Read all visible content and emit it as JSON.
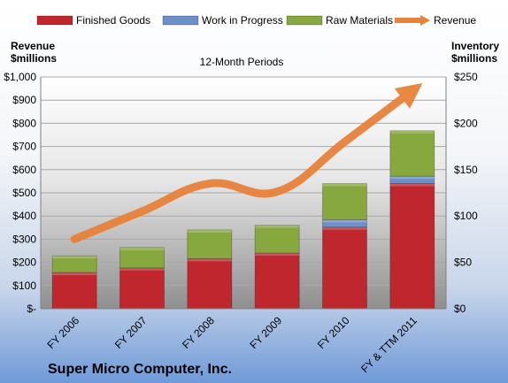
{
  "chart_data": {
    "type": "bar",
    "subtitle": "12-Month Periods",
    "company": "Super Micro Computer, Inc.",
    "categories": [
      "FY 2006",
      "FY 2007",
      "FY 2008",
      "FY 2009",
      "FY 2010",
      "FY & TTM 2011"
    ],
    "left_axis": {
      "title_line1": "Revenue",
      "title_line2": "$millions",
      "ylim": [
        0,
        1000
      ],
      "ticks": [
        "$-",
        "$100",
        "$200",
        "$300",
        "$400",
        "$500",
        "$600",
        "$700",
        "$800",
        "$900",
        "$1,000"
      ]
    },
    "right_axis": {
      "title_line1": "Inventory",
      "title_line2": "$millions",
      "ylim": [
        0,
        250
      ],
      "ticks": [
        "$0",
        "$50",
        "$100",
        "$150",
        "$200",
        "$250"
      ]
    },
    "series": [
      {
        "name": "Finished Goods",
        "axis": "right",
        "kind": "stacked-bar",
        "color": "#c0262d",
        "values": [
          39,
          44,
          54,
          60,
          88,
          135
        ]
      },
      {
        "name": "Work in Progress",
        "axis": "right",
        "kind": "stacked-bar",
        "color": "#6f8fc8",
        "values": [
          0,
          0,
          0,
          0,
          8,
          8
        ]
      },
      {
        "name": "Raw Materials",
        "axis": "right",
        "kind": "stacked-bar",
        "color": "#86a83e",
        "values": [
          18,
          22,
          31,
          30,
          39,
          49
        ]
      },
      {
        "name": "Revenue",
        "axis": "left",
        "kind": "arrow-line",
        "color": "#e8823a",
        "values": [
          300,
          420,
          540,
          505,
          720,
          940
        ]
      }
    ],
    "grid": true,
    "legend_position": "top"
  }
}
